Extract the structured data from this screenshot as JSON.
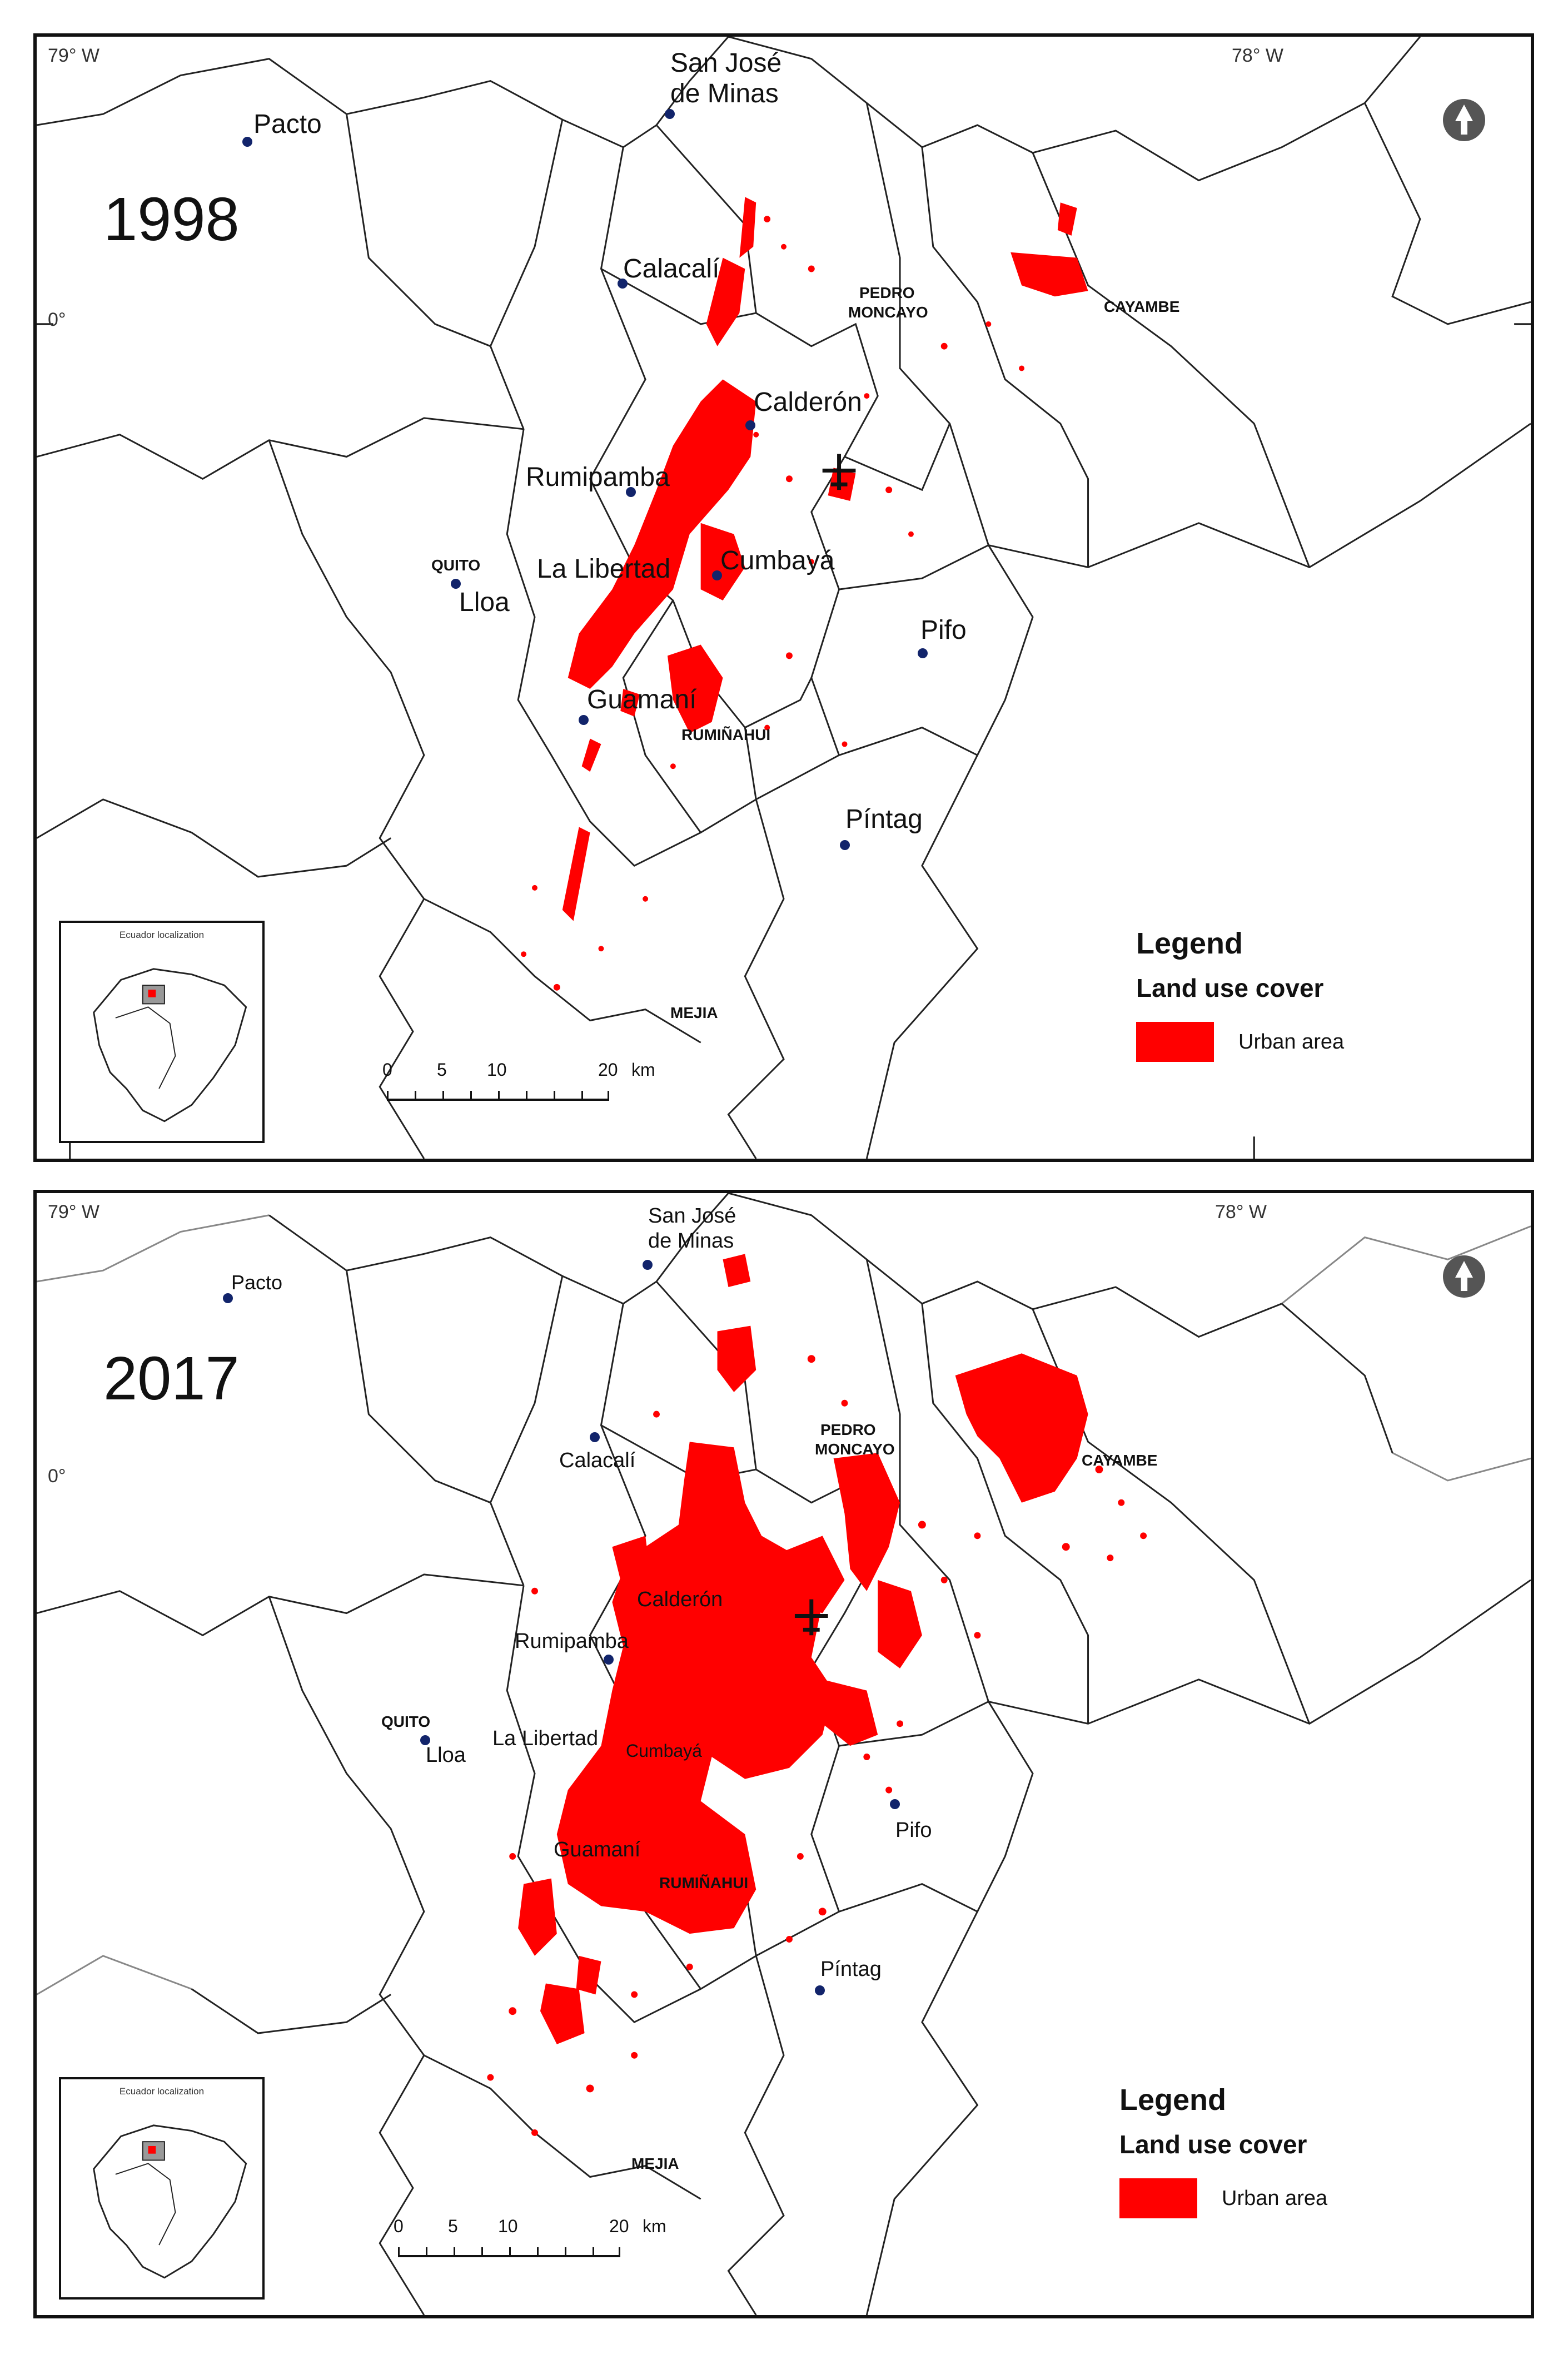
{
  "maps": [
    {
      "year": "1998",
      "coords": {
        "west": "79° W",
        "east": "78° W",
        "equator": "0°"
      },
      "places": {
        "pacto": "Pacto",
        "san_jose_1": "San José",
        "san_jose_2": "de Minas",
        "calacali": "Calacalí",
        "pedro_moncayo_1": "PEDRO",
        "pedro_moncayo_2": "MONCAYO",
        "cayambe": "CAYAMBE",
        "calderon": "Calderón",
        "rumipamba": "Rumipamba",
        "quito": "QUITO",
        "lloa": "Lloa",
        "la_libertad": "La Libertad",
        "cumbaya": "Cumbayá",
        "pifo": "Pifo",
        "guamani": "Guamaní",
        "ruminahui": "RUMIÑAHUI",
        "pintag": "Píntag",
        "mejia": "MEJIA"
      },
      "legend": {
        "title": "Legend",
        "subtitle": "Land use cover",
        "item": "Urban area",
        "color": "#ff0000"
      },
      "inset_title": "Ecuador localization",
      "scale": {
        "t0": "0",
        "t5": "5",
        "t10": "10",
        "t20": "20",
        "unit": "km"
      }
    },
    {
      "year": "2017",
      "coords": {
        "west": "79° W",
        "east": "78° W",
        "equator": "0°"
      },
      "places": {
        "pacto": "Pacto",
        "san_jose_1": "San José",
        "san_jose_2": "de Minas",
        "calacali": "Calacalí",
        "pedro_moncayo_1": "PEDRO",
        "pedro_moncayo_2": "MONCAYO",
        "cayambe": "CAYAMBE",
        "calderon": "Calderón",
        "rumipamba": "Rumipamba",
        "quito": "QUITO",
        "lloa": "Lloa",
        "la_libertad": "La Libertad",
        "cumbaya": "Cumbayá",
        "pifo": "Pifo",
        "guamani": "Guamaní",
        "ruminahui": "RUMIÑAHUI",
        "pintag": "Píntag",
        "mejia": "MEJIA"
      },
      "legend": {
        "title": "Legend",
        "subtitle": "Land use cover",
        "item": "Urban area",
        "color": "#ff0000"
      },
      "inset_title": "Ecuador localization",
      "scale": {
        "t0": "0",
        "t5": "5",
        "t10": "10",
        "t20": "20",
        "unit": "km"
      }
    }
  ],
  "icons": {
    "north_arrow": "north-arrow-icon",
    "airport": "airplane-icon"
  },
  "colors": {
    "urban": "#ff0000",
    "parish_lines": "#222222",
    "outer_lines": "#888888",
    "town_marker": "#12246b"
  }
}
